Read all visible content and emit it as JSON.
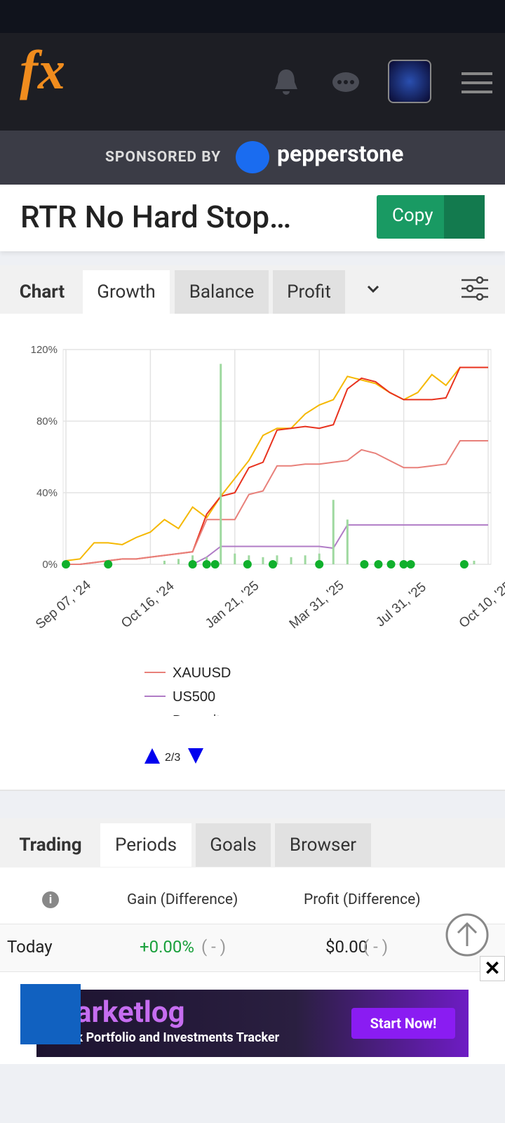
{
  "header": {
    "logo": "fx"
  },
  "sponsor": {
    "label": "SPONSORED BY",
    "brand": "pepperstone"
  },
  "title": "RTR No Hard Stop…",
  "copy_button": "Copy",
  "chart_tabs": [
    "Chart",
    "Growth",
    "Balance",
    "Profit"
  ],
  "chart_data": {
    "type": "line",
    "categories": [
      "Sep 07, '24",
      null,
      null,
      null,
      null,
      null,
      "Oct 16, '24",
      null,
      null,
      null,
      null,
      null,
      "Jan 21, '25",
      null,
      null,
      null,
      null,
      null,
      "Mar 31, '25",
      null,
      null,
      null,
      null,
      null,
      "Jul 31, '25",
      null,
      null,
      null,
      null,
      null,
      "Oct 10, '25"
    ],
    "series": [
      {
        "color": "#f5b800",
        "values": [
          2,
          3,
          12,
          12,
          11,
          15,
          18,
          25,
          20,
          32,
          26,
          38,
          48,
          58,
          72,
          76,
          76,
          84,
          89,
          92,
          105,
          103,
          101,
          96,
          92,
          96,
          106,
          100,
          110,
          110,
          110
        ]
      },
      {
        "color": "#e8321e",
        "values": [
          0,
          0,
          1,
          2,
          3,
          3,
          4,
          5,
          6,
          7,
          28,
          38,
          40,
          54,
          57,
          75,
          76,
          77,
          76,
          78,
          98,
          104,
          102,
          96,
          92,
          92,
          92,
          93,
          110,
          110,
          110
        ]
      },
      {
        "name": "XAUUSD",
        "color": "#e8807a",
        "values": [
          0,
          0,
          1,
          2,
          3,
          3,
          4,
          5,
          6,
          7,
          25,
          25,
          25,
          39,
          41,
          55,
          55,
          56,
          56,
          57,
          58,
          64,
          62,
          58,
          54,
          54,
          55,
          56,
          69,
          69,
          69
        ]
      },
      {
        "name": "US500",
        "color": "#b07cc6",
        "values": [
          null,
          null,
          null,
          null,
          null,
          null,
          null,
          null,
          null,
          0,
          4,
          10,
          10,
          10,
          10,
          10,
          10,
          10,
          10,
          9,
          22,
          22,
          22,
          22,
          22,
          22,
          22,
          22,
          22,
          22,
          22
        ]
      },
      {
        "name": "Deposit",
        "color": "#9fd9a0",
        "type": "bar",
        "values": [
          0,
          0,
          0,
          0,
          0,
          0,
          0,
          2,
          3,
          5,
          4,
          112,
          6,
          5,
          4,
          5,
          4,
          5,
          6,
          36,
          25,
          0,
          0,
          0,
          0,
          0,
          0,
          0,
          0,
          2,
          0
        ]
      }
    ],
    "ylim": [
      0,
      120
    ],
    "yticks": [
      {
        "value": 0,
        "label": "0%"
      },
      {
        "value": 40,
        "label": "40%"
      },
      {
        "value": 80,
        "label": "80%"
      },
      {
        "value": 120,
        "label": "120%"
      }
    ],
    "grid": true,
    "legend_page": "2/3"
  },
  "trading_tabs": [
    "Trading",
    "Periods",
    "Goals",
    "Browser"
  ],
  "table": {
    "header": [
      "Gain (Difference)",
      "Profit (Difference)"
    ],
    "rows": [
      [
        "Today",
        "+0.00%",
        "( - )",
        "$0.00",
        "( - )"
      ]
    ]
  },
  "ad": {
    "brand": "arketlog",
    "tagline": "Stock Portfolio and Investments Tracker",
    "cta": "Start Now!"
  }
}
